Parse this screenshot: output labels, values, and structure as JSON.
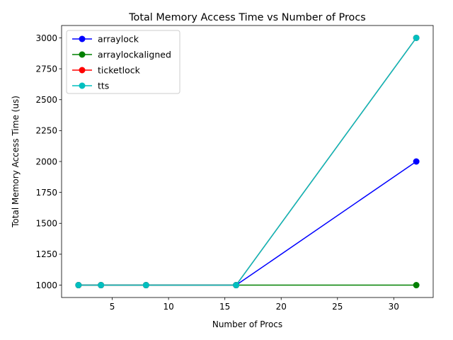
{
  "chart_data": {
    "type": "line",
    "title": "Total Memory Access Time vs Number of Procs",
    "xlabel": "Number of Procs",
    "ylabel": "Total Memory Access Time (us)",
    "x": [
      2,
      4,
      8,
      16,
      32
    ],
    "series": [
      {
        "name": "arraylock",
        "color": "#0000ff",
        "values": [
          1000,
          1000,
          1000,
          1000,
          2000
        ]
      },
      {
        "name": "arraylockaligned",
        "color": "#008000",
        "values": [
          1000,
          1000,
          1000,
          1000,
          1000
        ]
      },
      {
        "name": "ticketlock",
        "color": "#ff0000",
        "values": [
          1000,
          1000,
          1000,
          1000,
          3000
        ]
      },
      {
        "name": "tts",
        "color": "#00bfbf",
        "values": [
          1000,
          1000,
          1000,
          1000,
          3000
        ]
      }
    ],
    "xlim": [
      0.5,
      33.5
    ],
    "ylim": [
      900,
      3100
    ],
    "xticks": [
      5,
      10,
      15,
      20,
      25,
      30
    ],
    "yticks": [
      1000,
      1250,
      1500,
      1750,
      2000,
      2250,
      2500,
      2750,
      3000
    ],
    "grid": false,
    "legend_position": "top-left",
    "marker": "circle"
  }
}
